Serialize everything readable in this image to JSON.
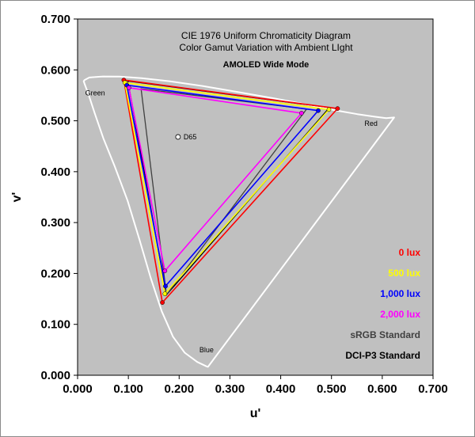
{
  "chart_data": {
    "type": "scatter",
    "title": "CIE 1976 Uniform Chromaticity Diagram",
    "subtitle": "Color Gamut Variation with Ambient LIght",
    "mode_label": "AMOLED Wide Mode",
    "xlabel": "u'",
    "ylabel": "v'",
    "xlim": [
      0.0,
      0.7
    ],
    "ylim": [
      0.0,
      0.7
    ],
    "xticks": [
      "0.000",
      "0.100",
      "0.200",
      "0.300",
      "0.400",
      "0.500",
      "0.600",
      "0.700"
    ],
    "yticks": [
      "0.000",
      "0.100",
      "0.200",
      "0.300",
      "0.400",
      "0.500",
      "0.600",
      "0.700"
    ],
    "grid": false,
    "background_color": "#c0c0c0",
    "region_labels": [
      {
        "text": "Green",
        "u": 0.015,
        "v": 0.55
      },
      {
        "text": "Red",
        "u": 0.565,
        "v": 0.49
      },
      {
        "text": "Blue",
        "u": 0.24,
        "v": 0.045
      }
    ],
    "white_point": {
      "label": "D65",
      "u": 0.1978,
      "v": 0.4683
    },
    "spectral_locus": [
      [
        0.2568,
        0.0165
      ],
      [
        0.2535,
        0.0176
      ],
      [
        0.2355,
        0.0261
      ],
      [
        0.211,
        0.0443
      ],
      [
        0.1879,
        0.0758
      ],
      [
        0.1658,
        0.1257
      ],
      [
        0.1438,
        0.1921
      ],
      [
        0.1216,
        0.2674
      ],
      [
        0.0984,
        0.3433
      ],
      [
        0.0733,
        0.41
      ],
      [
        0.0506,
        0.4658
      ],
      [
        0.0336,
        0.515
      ],
      [
        0.0218,
        0.551
      ],
      [
        0.0136,
        0.5732
      ],
      [
        0.012,
        0.5778
      ],
      [
        0.0137,
        0.58
      ],
      [
        0.023,
        0.585
      ],
      [
        0.05,
        0.587
      ],
      [
        0.0829,
        0.5869
      ],
      [
        0.1263,
        0.5838
      ],
      [
        0.181,
        0.5777
      ],
      [
        0.246,
        0.5684
      ],
      [
        0.3168,
        0.5563
      ],
      [
        0.3877,
        0.544
      ],
      [
        0.4528,
        0.5316
      ],
      [
        0.508,
        0.5205
      ],
      [
        0.551,
        0.513
      ],
      [
        0.585,
        0.508
      ],
      [
        0.6077,
        0.5051
      ],
      [
        0.6234,
        0.5065
      ]
    ],
    "series": [
      {
        "name": "DCI-P3 Standard",
        "color": "#000000",
        "points": [
          [
            0.496,
            0.526
          ],
          [
            0.099,
            0.578
          ],
          [
            0.175,
            0.158
          ]
        ]
      },
      {
        "name": "sRGB Standard",
        "color": "#404040",
        "points": [
          [
            0.451,
            0.523
          ],
          [
            0.125,
            0.563
          ],
          [
            0.175,
            0.158
          ]
        ]
      },
      {
        "name": "0 lux",
        "color": "#ff0000",
        "points": [
          [
            0.512,
            0.524
          ],
          [
            0.091,
            0.58
          ],
          [
            0.167,
            0.143
          ]
        ]
      },
      {
        "name": "500 lux",
        "color": "#ffff00",
        "points": [
          [
            0.495,
            0.522
          ],
          [
            0.093,
            0.575
          ],
          [
            0.172,
            0.16
          ]
        ]
      },
      {
        "name": "1,000 lux",
        "color": "#0000ff",
        "points": [
          [
            0.474,
            0.52
          ],
          [
            0.097,
            0.57
          ],
          [
            0.173,
            0.175
          ]
        ]
      },
      {
        "name": "2,000 lux",
        "color": "#ff00ff",
        "points": [
          [
            0.441,
            0.515
          ],
          [
            0.101,
            0.565
          ],
          [
            0.172,
            0.205
          ]
        ]
      }
    ],
    "legend": [
      "0 lux",
      "500 lux",
      "1,000 lux",
      "2,000 lux",
      "sRGB Standard",
      "DCI-P3 Standard"
    ],
    "legend_colors": [
      "#ff0000",
      "#ffff00",
      "#0000ff",
      "#ff00ff",
      "#404040",
      "#000000"
    ],
    "legend_placement": "bottom-right inside plot"
  }
}
